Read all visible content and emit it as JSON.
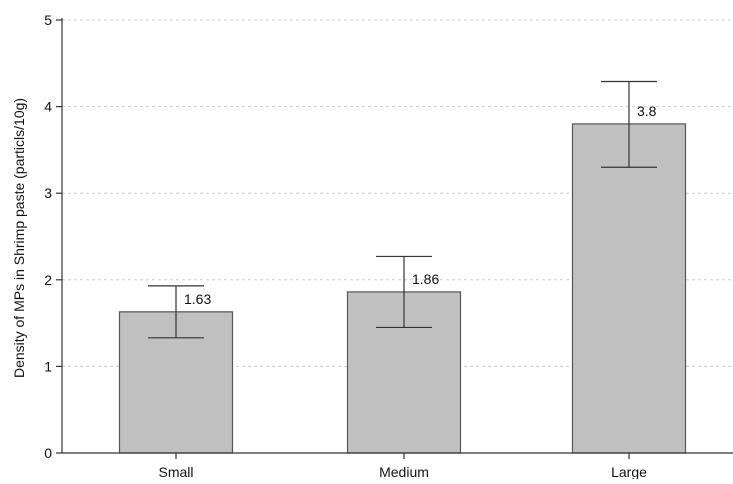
{
  "chart_data": {
    "type": "bar",
    "title": "",
    "xlabel": "",
    "ylabel": "Density of MPs in Shrimp paste (particls/10g)",
    "categories": [
      "Small",
      "Medium",
      "Large"
    ],
    "values": [
      1.63,
      1.86,
      3.8
    ],
    "error_bars": [
      {
        "low": 1.33,
        "high": 1.93
      },
      {
        "low": 1.45,
        "high": 2.27
      },
      {
        "low": 3.3,
        "high": 4.29
      }
    ],
    "data_labels": [
      "1.63",
      "1.86",
      "3.8"
    ],
    "y_ticks": [
      0,
      1,
      2,
      3,
      4,
      5
    ],
    "ylim": [
      0,
      5
    ],
    "grid": "horizontal dashed",
    "legend": "none",
    "colors": {
      "bar_fill": "#c0c0c0",
      "bar_stroke": "#555555",
      "axis": "#333333",
      "grid": "#cccccc"
    }
  }
}
